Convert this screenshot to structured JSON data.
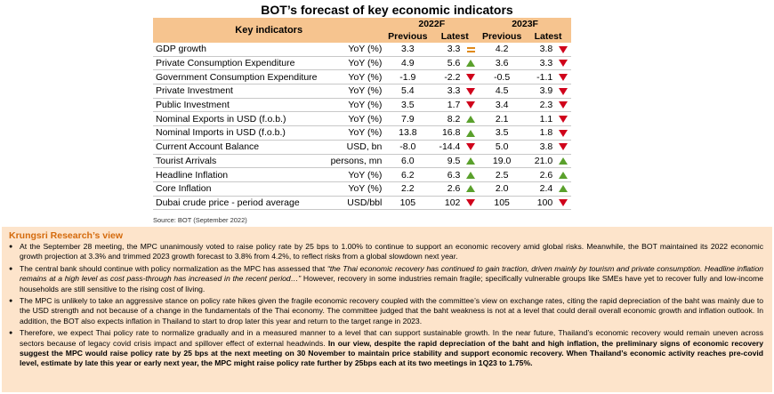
{
  "title": "BOT’s forecast of key economic indicators",
  "table": {
    "head_label": "Key indicators",
    "groups": [
      "2022F",
      "2023F"
    ],
    "subheads": [
      "Previous",
      "Latest",
      "Previous",
      "Latest"
    ],
    "rows": [
      {
        "name": "GDP growth",
        "unit": "YoY (%)",
        "p22": "3.3",
        "l22": "3.3",
        "m22": "same",
        "p23": "4.2",
        "l23": "3.8",
        "m23": "down"
      },
      {
        "name": "Private Consumption Expenditure",
        "unit": "YoY (%)",
        "p22": "4.9",
        "l22": "5.6",
        "m22": "up",
        "p23": "3.6",
        "l23": "3.3",
        "m23": "down"
      },
      {
        "name": "Government Consumption Expenditure",
        "unit": "YoY (%)",
        "p22": "-1.9",
        "l22": "-2.2",
        "m22": "down",
        "p23": "-0.5",
        "l23": "-1.1",
        "m23": "down"
      },
      {
        "name": "Private Investment",
        "unit": "YoY (%)",
        "p22": "5.4",
        "l22": "3.3",
        "m22": "down",
        "p23": "4.5",
        "l23": "3.9",
        "m23": "down"
      },
      {
        "name": "Public Investment",
        "unit": "YoY (%)",
        "p22": "3.5",
        "l22": "1.7",
        "m22": "down",
        "p23": "3.4",
        "l23": "2.3",
        "m23": "down"
      },
      {
        "name": "Nominal Exports in USD (f.o.b.)",
        "unit": "YoY (%)",
        "p22": "7.9",
        "l22": "8.2",
        "m22": "up",
        "p23": "2.1",
        "l23": "1.1",
        "m23": "down"
      },
      {
        "name": "Nominal Imports in USD (f.o.b.)",
        "unit": "YoY (%)",
        "p22": "13.8",
        "l22": "16.8",
        "m22": "up",
        "p23": "3.5",
        "l23": "1.8",
        "m23": "down"
      },
      {
        "name": "Current Account Balance",
        "unit": "USD, bn",
        "p22": "-8.0",
        "l22": "-14.4",
        "m22": "down",
        "p23": "5.0",
        "l23": "3.8",
        "m23": "down"
      },
      {
        "name": "Tourist Arrivals",
        "unit": "persons, mn",
        "p22": "6.0",
        "l22": "9.5",
        "m22": "up",
        "p23": "19.0",
        "l23": "21.0",
        "m23": "up"
      },
      {
        "name": "Headline Inflation",
        "unit": "YoY (%)",
        "p22": "6.2",
        "l22": "6.3",
        "m22": "up",
        "p23": "2.5",
        "l23": "2.6",
        "m23": "up"
      },
      {
        "name": "Core Inflation",
        "unit": "YoY (%)",
        "p22": "2.2",
        "l22": "2.6",
        "m22": "up",
        "p23": "2.0",
        "l23": "2.4",
        "m23": "up"
      },
      {
        "name": "Dubai crude price - period average",
        "unit": "USD/bbl",
        "p22": "105",
        "l22": "102",
        "m22": "down",
        "p23": "105",
        "l23": "100",
        "m23": "down"
      }
    ]
  },
  "source": "Source: BOT (September 2022)",
  "view": {
    "title": "Krungsri Research’s view",
    "b1": "At the September 28 meeting, the MPC unanimously voted to raise policy rate by 25 bps to 1.00% to continue to support an economic recovery amid global risks. Meanwhile, the BOT maintained its 2022 economic growth projection at 3.3% and trimmed 2023 growth forecast to 3.8% from 4.2%, to reflect risks from a global slowdown next year.",
    "b2a": "The central bank should continue with policy normalization as the MPC has assessed that ",
    "b2b": "“the Thai economic recovery has continued to gain traction, driven mainly by tourism and private consumption. Headline inflation remains at a high level as cost pass-through has increased in the recent period…”",
    "b2c": " However, recovery in some industries remain fragile; specifically vulnerable groups like SMEs have yet to recover fully and low-income households are still sensitive to the rising cost of living.",
    "b3": "The MPC is unlikely to take an aggressive stance on policy rate hikes given the fragile economic recovery coupled with the committee’s view on exchange rates, citing the rapid depreciation of the baht was mainly due to the USD strength and not because of a change in the fundamentals of the Thai economy. The committee judged that the baht weakness is not at a level that could derail overall economic growth and inflation outlook. In addition, the BOT also expects inflation in Thailand to start to drop later this year and return to the target range in 2023.",
    "b4a": "Therefore, we expect Thai policy rate to normalize gradually and in a measured manner to a level that can support sustainable growth. In the near future, Thailand’s economic recovery would remain uneven across sectors because of legacy covid crisis impact  and spillover effect of external headwinds. ",
    "b4b": "In our view, despite the rapid depreciation of the baht and high inflation, the preliminary signs of economic recovery suggest the MPC would raise policy rate by 25 bps at the next meeting on 30 November to maintain price stability and support economic recovery. When Thailand’s economic activity reaches pre-covid level, estimate by late this year or early next year, the MPC might raise policy rate further by 25bps each at its two meetings in 1Q23 to 1.75%."
  },
  "colors": {
    "up": "#5aa02c",
    "down": "#d0021b",
    "same": "#e08a1c",
    "header": "#f6c48f",
    "panel": "#fde4cb",
    "accent": "#d46a0c"
  }
}
